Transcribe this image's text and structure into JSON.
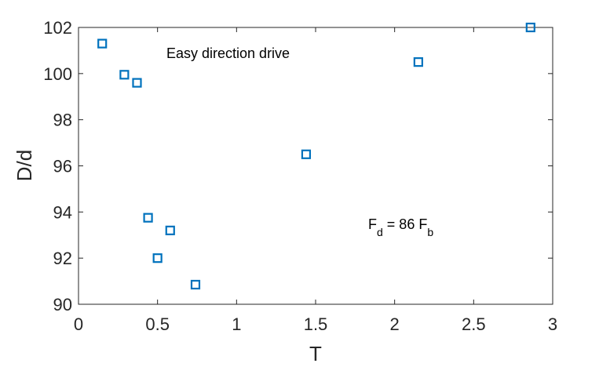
{
  "chart_data": {
    "type": "scatter",
    "title": "",
    "xlabel": "T",
    "ylabel": "D/d",
    "xlim": [
      0,
      3
    ],
    "ylim": [
      90,
      102
    ],
    "xticks": [
      "0",
      "0.5",
      "1",
      "1.5",
      "2",
      "2.5",
      "3"
    ],
    "yticks": [
      "90",
      "92",
      "94",
      "96",
      "98",
      "100",
      "102"
    ],
    "grid": false,
    "marker": "square-open",
    "series": [
      {
        "color": "#0072BD",
        "x": [
          0.15,
          0.29,
          0.37,
          0.44,
          0.5,
          0.58,
          0.74,
          1.44,
          2.15,
          2.86
        ],
        "y": [
          101.3,
          99.95,
          99.6,
          93.75,
          92.0,
          93.2,
          90.85,
          96.5,
          100.5,
          102.0
        ]
      }
    ],
    "annotations": {
      "drive_text": "Easy direction drive",
      "force_main": "F",
      "force_sub1": "d",
      "force_mid": " = 86 F",
      "force_sub2": "b"
    }
  }
}
